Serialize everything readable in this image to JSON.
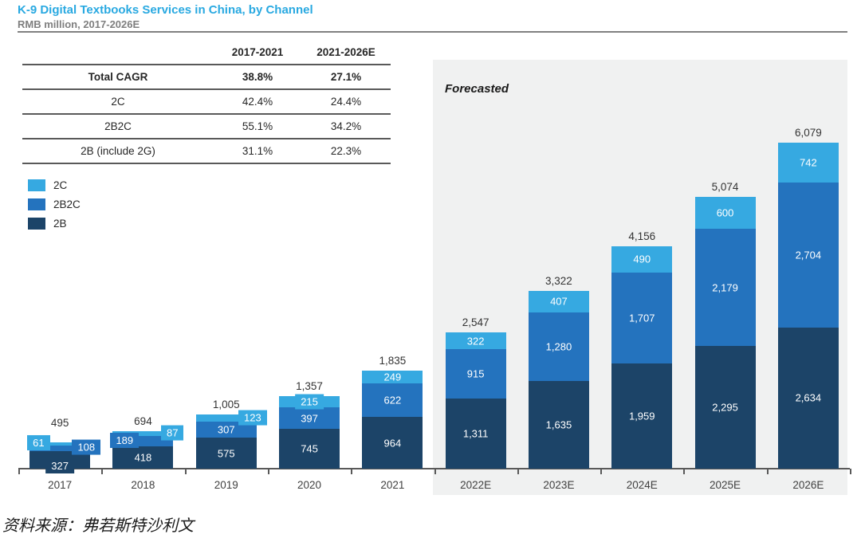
{
  "header": {
    "title": "K-9 Digital Textbooks Services in China, by Channel",
    "subtitle": "RMB million, 2017-2026E",
    "title_color": "#29A9E1"
  },
  "cagr_table": {
    "columns": [
      "",
      "2017-2021",
      "2021-2026E"
    ],
    "rows": [
      {
        "label": "Total CAGR",
        "values": [
          "38.8%",
          "27.1%"
        ],
        "bold": true
      },
      {
        "label": "2C",
        "values": [
          "42.4%",
          "24.4%"
        ],
        "bold": false
      },
      {
        "label": "2B2C",
        "values": [
          "55.1%",
          "34.2%"
        ],
        "bold": false
      },
      {
        "label": "2B (include 2G)",
        "values": [
          "31.1%",
          "22.3%"
        ],
        "bold": false
      }
    ]
  },
  "legend": [
    {
      "label": "2C",
      "color": "#36A9E1"
    },
    {
      "label": "2B2C",
      "color": "#2473BE"
    },
    {
      "label": "2B",
      "color": "#1C4468"
    }
  ],
  "chart_data": {
    "type": "bar",
    "stacked": true,
    "title": "K-9 Digital Textbooks Services in China, by Channel",
    "unit": "RMB million",
    "categories": [
      "2017",
      "2018",
      "2019",
      "2020",
      "2021",
      "2022E",
      "2023E",
      "2024E",
      "2025E",
      "2026E"
    ],
    "series": [
      {
        "name": "2B",
        "color": "#1C4468",
        "values": [
          327,
          418,
          575,
          745,
          964,
          1311,
          1635,
          1959,
          2295,
          2634
        ]
      },
      {
        "name": "2B2C",
        "color": "#2473BE",
        "values": [
          108,
          189,
          307,
          397,
          622,
          915,
          1280,
          1707,
          2179,
          2704
        ]
      },
      {
        "name": "2C",
        "color": "#36A9E1",
        "values": [
          61,
          87,
          123,
          215,
          249,
          322,
          407,
          490,
          600,
          742
        ]
      }
    ],
    "totals": [
      495,
      694,
      1005,
      1357,
      1835,
      2547,
      3322,
      4156,
      5074,
      6079
    ],
    "forecast_label": "Forecasted",
    "forecast_start_index": 5,
    "ylim": [
      0,
      6500
    ],
    "grid": false,
    "legend_position": "upper-left",
    "label_modes": [
      [
        "chip-below",
        "chip-right",
        "chip-left"
      ],
      [
        "in",
        "chip-left",
        "chip-right"
      ],
      [
        "in",
        "in",
        "chip-right"
      ],
      [
        "in",
        "in",
        "chip-center"
      ],
      [
        "in",
        "in",
        "in"
      ],
      [
        "in",
        "in",
        "in"
      ],
      [
        "in",
        "in",
        "in"
      ],
      [
        "in",
        "in",
        "in"
      ],
      [
        "in",
        "in",
        "in"
      ],
      [
        "in",
        "in",
        "in"
      ]
    ]
  },
  "source": "资料来源：弗若斯特沙利文"
}
